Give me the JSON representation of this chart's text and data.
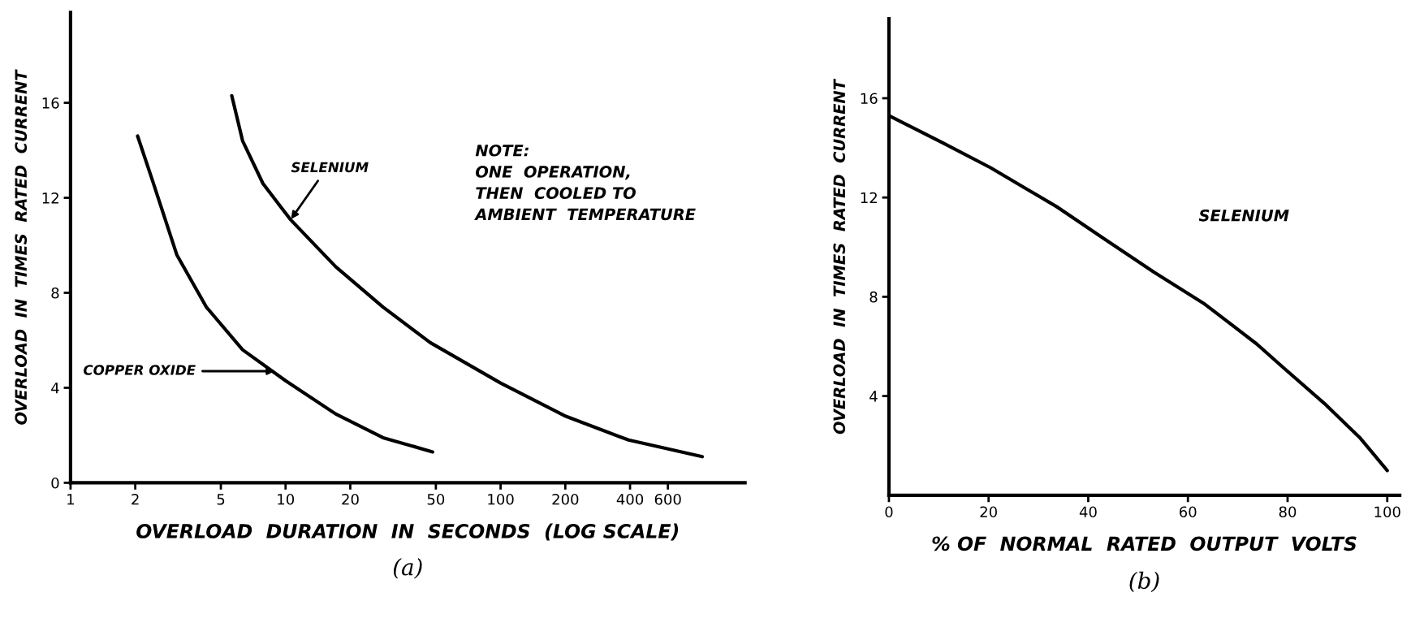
{
  "chart_data": [
    {
      "type": "line",
      "xlabel": "OVERLOAD  DURATION  IN  SECONDS  (LOG SCALE)",
      "ylabel": "OVERLOAD  IN  TIMES  RATED  CURRENT",
      "log": "x",
      "xlim": [
        1,
        1370
      ],
      "ylim": [
        0,
        19.8
      ],
      "xticks": [
        1,
        2,
        5,
        10,
        20,
        50,
        100,
        200,
        400,
        600
      ],
      "yticks": [
        0,
        4,
        8,
        12,
        16
      ],
      "grid": false,
      "legend": false,
      "line_style": "solid",
      "series": [
        {
          "color": "#000000",
          "x": [
            2.05,
            2.39,
            3.12,
            4.28,
            6.31,
            10,
            17.1,
            28.4,
            48.3
          ],
          "values": [
            14.6,
            12.8,
            9.6,
            7.4,
            5.6,
            4.3,
            2.9,
            1.9,
            1.3
          ]
        },
        {
          "color": "#000000",
          "x": [
            5.62,
            6.31,
            7.85,
            10.5,
            17.1,
            28.4,
            47.1,
            100,
            201,
            394,
            867
          ],
          "values": [
            16.3,
            14.4,
            12.6,
            11.1,
            9.1,
            7.4,
            5.9,
            4.2,
            2.8,
            1.8,
            1.1
          ]
        }
      ],
      "annotations": [
        {
          "text": "COPPER OXIDE",
          "x": 8.9,
          "y": 4.7
        },
        {
          "text": "SELENIUM",
          "x": 10.6,
          "y": 11.1
        },
        "NOTE:\nONE  OPERATION,\nTHEN  COOLED TO\nAMBIENT  TEMPERATURE",
        "(a)"
      ]
    },
    {
      "type": "line",
      "xlabel": "% OF  NORMAL  RATED  OUTPUT  VOLTS",
      "ylabel": "OVERLOAD  IN  TIMES  RATED  CURRENT",
      "xlim": [
        0,
        102.5
      ],
      "ylim": [
        0,
        19.2
      ],
      "xticks": [
        0,
        20,
        40,
        60,
        80,
        100
      ],
      "yticks": [
        4,
        8,
        12,
        16
      ],
      "grid": false,
      "legend": false,
      "line_style": "solid",
      "series": [
        {
          "name": "SELENIUM",
          "color": "#000000",
          "x": [
            0,
            10.8,
            20.4,
            33.9,
            42.7,
            53.1,
            63.4,
            73.8,
            79.4,
            87.4,
            94.6,
            100
          ],
          "values": [
            15.3,
            14.2,
            13.2,
            11.6,
            10.4,
            9.0,
            7.7,
            6.1,
            5.1,
            3.7,
            2.3,
            1.0
          ]
        }
      ],
      "annotations": [
        "(b)"
      ]
    }
  ]
}
